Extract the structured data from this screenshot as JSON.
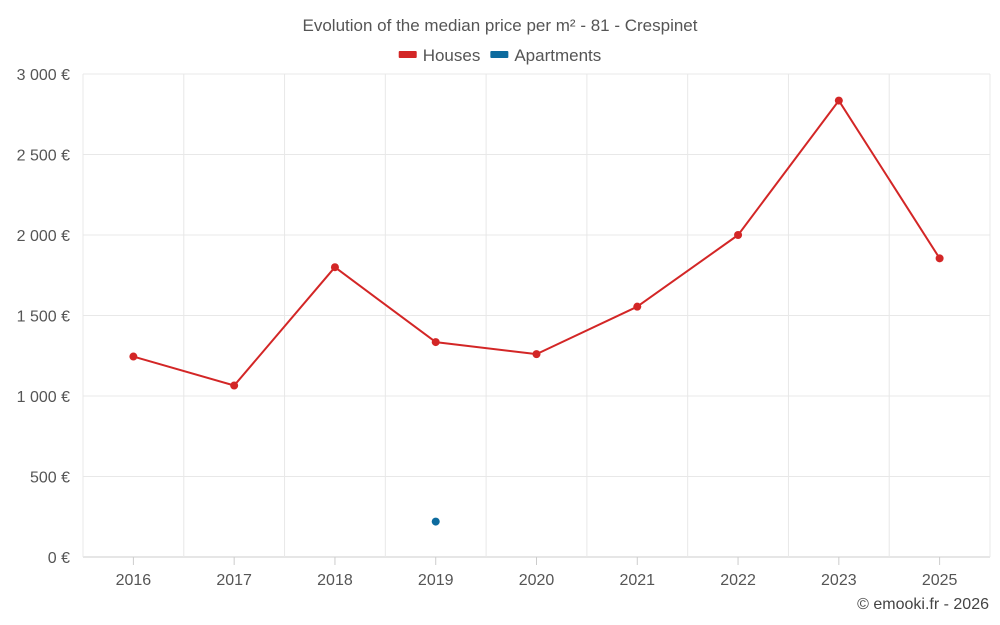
{
  "chart_data": {
    "type": "line",
    "title": "Evolution of the median price per m² - 81 - Crespinet",
    "categories": [
      "2016",
      "2017",
      "2018",
      "2019",
      "2020",
      "2021",
      "2022",
      "2023",
      "2025"
    ],
    "ylim": [
      0,
      3000
    ],
    "y_ticks": [
      0,
      500,
      1000,
      1500,
      2000,
      2500,
      3000
    ],
    "y_tick_labels": [
      "0 €",
      "500 €",
      "1 000 €",
      "1 500 €",
      "2 000 €",
      "2 500 €",
      "3 000 €"
    ],
    "grid": true,
    "legend_position": "top-center",
    "series": [
      {
        "name": "Houses",
        "color": "#d32626",
        "values": [
          1245,
          1065,
          1800,
          1335,
          1260,
          1555,
          2000,
          2835,
          1855
        ]
      },
      {
        "name": "Apartments",
        "color": "#0d6b9e",
        "values": [
          null,
          null,
          null,
          220,
          null,
          null,
          null,
          null,
          null
        ]
      }
    ]
  },
  "credit": "© emooki.fr - 2026"
}
